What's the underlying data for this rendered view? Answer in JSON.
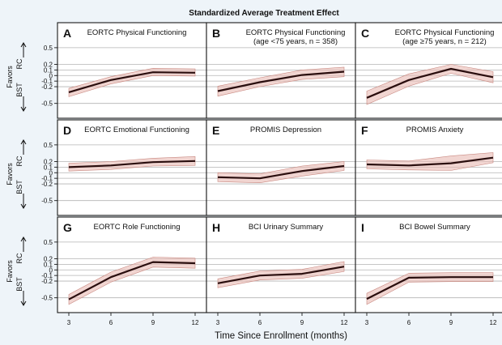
{
  "figure": {
    "title": "Standardized Average Treatment Effect",
    "xlabel": "Time Since Enrollment (months)",
    "ylabel_top": "RC",
    "ylabel_mid": "Favors",
    "ylabel_bottom": "BST"
  },
  "chart_data": {
    "type": "line",
    "title": "Standardized Average Treatment Effect",
    "xlabel": "Time Since Enrollment (months)",
    "x": [
      3,
      6,
      9,
      12
    ],
    "x_ticks": [
      "3",
      "6",
      "9",
      "12"
    ],
    "ylim": [
      -0.65,
      0.6
    ],
    "y_ticks": [
      "0.5",
      "0.2",
      "0.1",
      "0",
      "-0.1",
      "-0.2",
      "-0.5"
    ],
    "y_tick_values": [
      0.5,
      0.2,
      0.1,
      0,
      -0.1,
      -0.2,
      -0.5
    ],
    "grid": true,
    "panels": [
      {
        "letter": "A",
        "title": [
          "EORTC Physical Functioning"
        ],
        "values": [
          -0.3,
          -0.08,
          0.06,
          0.05
        ],
        "lower": [
          -0.38,
          -0.15,
          0.0,
          -0.01
        ],
        "upper": [
          -0.23,
          -0.02,
          0.13,
          0.12
        ]
      },
      {
        "letter": "B",
        "title": [
          "EORTC Physical Functioning",
          "(age <75 years, n = 358)"
        ],
        "values": [
          -0.28,
          -0.12,
          0.01,
          0.07
        ],
        "lower": [
          -0.37,
          -0.2,
          -0.07,
          -0.02
        ],
        "upper": [
          -0.19,
          -0.04,
          0.1,
          0.15
        ]
      },
      {
        "letter": "C",
        "title": [
          "EORTC Physical Functioning",
          "(age ≥75 years, n = 212)"
        ],
        "values": [
          -0.4,
          -0.08,
          0.12,
          -0.03
        ],
        "lower": [
          -0.52,
          -0.19,
          0.04,
          -0.13
        ],
        "upper": [
          -0.28,
          0.03,
          0.2,
          0.07
        ]
      },
      {
        "letter": "D",
        "title": [
          "EORTC Emotional Functioning"
        ],
        "values": [
          0.1,
          0.13,
          0.19,
          0.21
        ],
        "lower": [
          0.03,
          0.06,
          0.12,
          0.13
        ],
        "upper": [
          0.17,
          0.2,
          0.26,
          0.29
        ]
      },
      {
        "letter": "E",
        "title": [
          "PROMIS Depression"
        ],
        "values": [
          -0.08,
          -0.1,
          0.03,
          0.12
        ],
        "lower": [
          -0.16,
          -0.18,
          -0.06,
          0.04
        ],
        "upper": [
          0.0,
          -0.02,
          0.12,
          0.2
        ]
      },
      {
        "letter": "F",
        "title": [
          "PROMIS Anxiety"
        ],
        "values": [
          0.15,
          0.13,
          0.17,
          0.27
        ],
        "lower": [
          0.07,
          0.05,
          0.04,
          0.18
        ],
        "upper": [
          0.23,
          0.21,
          0.3,
          0.36
        ]
      },
      {
        "letter": "G",
        "title": [
          "EORTC Role Functioning"
        ],
        "values": [
          -0.53,
          -0.13,
          0.14,
          0.12
        ],
        "lower": [
          -0.62,
          -0.22,
          0.05,
          0.03
        ],
        "upper": [
          -0.44,
          -0.04,
          0.23,
          0.21
        ]
      },
      {
        "letter": "H",
        "title": [
          "BCI Urinary Summary"
        ],
        "values": [
          -0.24,
          -0.1,
          -0.07,
          0.06
        ],
        "lower": [
          -0.32,
          -0.18,
          -0.15,
          -0.03
        ],
        "upper": [
          -0.16,
          -0.02,
          0.01,
          0.15
        ]
      },
      {
        "letter": "I",
        "title": [
          "BCI Bowel Summary"
        ],
        "values": [
          -0.52,
          -0.14,
          -0.13,
          -0.13
        ],
        "lower": [
          -0.62,
          -0.22,
          -0.21,
          -0.21
        ],
        "upper": [
          -0.42,
          -0.06,
          -0.05,
          -0.05
        ]
      }
    ]
  }
}
